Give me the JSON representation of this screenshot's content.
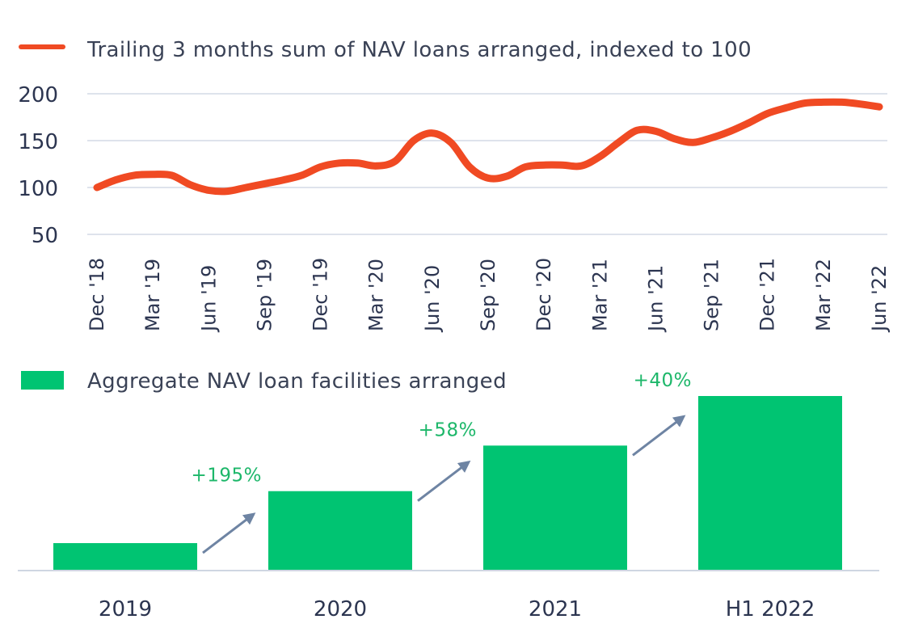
{
  "chart_data": [
    {
      "type": "line",
      "legend": "Trailing 3 months sum of NAV loans arranged, indexed to 100",
      "series_color": "#f04a23",
      "y_ticks": [
        200,
        150,
        100,
        50
      ],
      "ylim": [
        50,
        200
      ],
      "tick_labels": [
        "Dec '18",
        "Mar '19",
        "Jun '19",
        "Sep '19",
        "Dec '19",
        "Mar '20",
        "Jun '20",
        "Sep '20",
        "Dec '20",
        "Mar '21",
        "Jun '21",
        "Sep '21",
        "Dec '21",
        "Mar '22",
        "Jun '22"
      ],
      "grid": true,
      "x": [
        "Dec '18",
        "Jan '19",
        "Feb '19",
        "Mar '19",
        "Apr '19",
        "May '19",
        "Jun '19",
        "Jul '19",
        "Aug '19",
        "Sep '19",
        "Oct '19",
        "Nov '19",
        "Dec '19",
        "Jan '20",
        "Feb '20",
        "Mar '20",
        "Apr '20",
        "May '20",
        "Jun '20",
        "Jul '20",
        "Aug '20",
        "Sep '20",
        "Oct '20",
        "Nov '20",
        "Dec '20",
        "Jan '21",
        "Feb '21",
        "Mar '21",
        "Apr '21",
        "May '21",
        "Jun '21",
        "Jul '21",
        "Aug '21",
        "Sep '21",
        "Oct '21",
        "Nov '21",
        "Dec '21",
        "Jan '22",
        "Feb '22",
        "Mar '22",
        "Apr '22",
        "May '22",
        "Jun '22"
      ],
      "values": [
        100,
        108,
        113,
        114,
        113,
        103,
        97,
        96,
        100,
        104,
        108,
        113,
        122,
        126,
        126,
        123,
        128,
        150,
        158,
        148,
        122,
        110,
        112,
        122,
        124,
        124,
        123,
        133,
        148,
        161,
        160,
        152,
        148,
        153,
        160,
        169,
        179,
        185,
        190,
        191,
        191,
        189,
        186
      ]
    },
    {
      "type": "bar",
      "legend": "Aggregate NAV loan facilities arranged",
      "series_color": "#00c472",
      "categories": [
        "2019",
        "2020",
        "2021",
        "H1 2022"
      ],
      "values": [
        1.0,
        2.95,
        4.66,
        6.52
      ],
      "growth_labels": [
        "+195%",
        "+58%",
        "+40%"
      ]
    }
  ],
  "colors": {
    "grid": "#d3dae6",
    "arrow": "#6e84a3",
    "axis_text": "#2c3550",
    "growth_text": "#1db76a"
  }
}
